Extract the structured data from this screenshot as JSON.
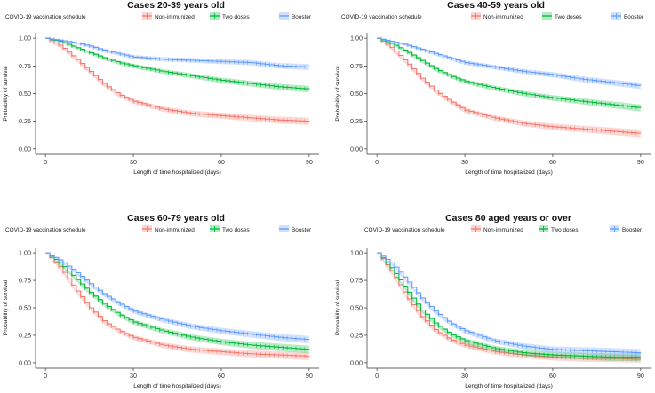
{
  "colors": {
    "non_immunized": "#f8766d",
    "two_doses": "#00ba38",
    "booster": "#619cff"
  },
  "chart_data": [
    {
      "type": "line",
      "title": "Cases 20-39 years old",
      "legend_title": "COVID-19 vaccination schedule",
      "xlabel": "Length of time hospitalized (days)",
      "ylabel": "Probability of survival",
      "xlim": [
        0,
        90
      ],
      "ylim": [
        0,
        1
      ],
      "xticks": [
        "0",
        "30",
        "60",
        "90"
      ],
      "yticks": [
        "0.00",
        "0.25",
        "0.50",
        "0.75",
        "1.00"
      ],
      "x": [
        0,
        5,
        10,
        15,
        20,
        25,
        30,
        40,
        50,
        60,
        70,
        80,
        90
      ],
      "series": [
        {
          "name": "Non-immunized",
          "color": "#f8766d",
          "values": [
            1.0,
            0.93,
            0.82,
            0.7,
            0.58,
            0.49,
            0.43,
            0.36,
            0.32,
            0.3,
            0.28,
            0.26,
            0.25
          ]
        },
        {
          "name": "Two doses",
          "color": "#00ba38",
          "values": [
            1.0,
            0.97,
            0.92,
            0.87,
            0.82,
            0.78,
            0.75,
            0.7,
            0.66,
            0.62,
            0.59,
            0.56,
            0.54
          ]
        },
        {
          "name": "Booster",
          "color": "#619cff",
          "values": [
            1.0,
            0.98,
            0.96,
            0.93,
            0.89,
            0.86,
            0.83,
            0.81,
            0.8,
            0.79,
            0.78,
            0.75,
            0.74
          ]
        }
      ]
    },
    {
      "type": "line",
      "title": "Cases 40-59 years old",
      "legend_title": "COVID-19 vaccination schedule",
      "xlabel": "Length of time hospitalized (days)",
      "ylabel": "Probability of survival",
      "xlim": [
        0,
        90
      ],
      "ylim": [
        0,
        1
      ],
      "xticks": [
        "0",
        "30",
        "60",
        "90"
      ],
      "yticks": [
        "0.00",
        "0.25",
        "0.50",
        "0.75",
        "1.00"
      ],
      "x": [
        0,
        5,
        10,
        15,
        20,
        25,
        30,
        40,
        50,
        60,
        70,
        80,
        90
      ],
      "series": [
        {
          "name": "Non-immunized",
          "color": "#f8766d",
          "values": [
            1.0,
            0.91,
            0.78,
            0.64,
            0.52,
            0.43,
            0.35,
            0.28,
            0.23,
            0.2,
            0.18,
            0.16,
            0.14
          ]
        },
        {
          "name": "Two doses",
          "color": "#00ba38",
          "values": [
            1.0,
            0.95,
            0.88,
            0.8,
            0.72,
            0.66,
            0.61,
            0.55,
            0.5,
            0.46,
            0.43,
            0.4,
            0.37
          ]
        },
        {
          "name": "Booster",
          "color": "#619cff",
          "values": [
            1.0,
            0.97,
            0.94,
            0.9,
            0.86,
            0.82,
            0.78,
            0.74,
            0.7,
            0.67,
            0.63,
            0.6,
            0.57
          ]
        }
      ]
    },
    {
      "type": "line",
      "title": "Cases 60-79 years old",
      "legend_title": "COVID-19 vaccination schedule",
      "xlabel": "Length of time hospitalized (days)",
      "ylabel": "Probability of survival",
      "xlim": [
        0,
        90
      ],
      "ylim": [
        0,
        1
      ],
      "xticks": [
        "0",
        "30",
        "60",
        "90"
      ],
      "yticks": [
        "0.00",
        "0.25",
        "0.50",
        "0.75",
        "1.00"
      ],
      "x": [
        0,
        5,
        10,
        15,
        20,
        25,
        30,
        40,
        50,
        60,
        70,
        80,
        90
      ],
      "series": [
        {
          "name": "Non-immunized",
          "color": "#f8766d",
          "values": [
            1.0,
            0.86,
            0.67,
            0.5,
            0.37,
            0.29,
            0.23,
            0.16,
            0.12,
            0.1,
            0.08,
            0.07,
            0.06
          ]
        },
        {
          "name": "Two doses",
          "color": "#00ba38",
          "values": [
            1.0,
            0.9,
            0.77,
            0.64,
            0.53,
            0.44,
            0.37,
            0.29,
            0.23,
            0.19,
            0.16,
            0.14,
            0.12
          ]
        },
        {
          "name": "Booster",
          "color": "#619cff",
          "values": [
            1.0,
            0.93,
            0.83,
            0.72,
            0.62,
            0.54,
            0.47,
            0.39,
            0.33,
            0.29,
            0.26,
            0.23,
            0.21
          ]
        }
      ]
    },
    {
      "type": "line",
      "title": "Cases 80 aged years or over",
      "legend_title": "COVID-19 vaccination schedule",
      "xlabel": "Length of time hospitalized (days)",
      "ylabel": "Probability of survival",
      "xlim": [
        0,
        90
      ],
      "ylim": [
        0,
        1
      ],
      "xticks": [
        "0",
        "30",
        "60",
        "90"
      ],
      "yticks": [
        "0.00",
        "0.25",
        "0.50",
        "0.75",
        "1.00"
      ],
      "x": [
        0,
        5,
        10,
        15,
        20,
        25,
        30,
        40,
        50,
        60,
        70,
        80,
        90
      ],
      "series": [
        {
          "name": "Non-immunized",
          "color": "#f8766d",
          "values": [
            1.0,
            0.82,
            0.6,
            0.42,
            0.29,
            0.21,
            0.16,
            0.1,
            0.07,
            0.05,
            0.04,
            0.04,
            0.03
          ]
        },
        {
          "name": "Two doses",
          "color": "#00ba38",
          "values": [
            1.0,
            0.85,
            0.66,
            0.48,
            0.35,
            0.26,
            0.2,
            0.13,
            0.09,
            0.07,
            0.06,
            0.05,
            0.05
          ]
        },
        {
          "name": "Booster",
          "color": "#619cff",
          "values": [
            1.0,
            0.9,
            0.75,
            0.59,
            0.46,
            0.36,
            0.29,
            0.2,
            0.15,
            0.12,
            0.11,
            0.1,
            0.09
          ]
        }
      ]
    }
  ]
}
